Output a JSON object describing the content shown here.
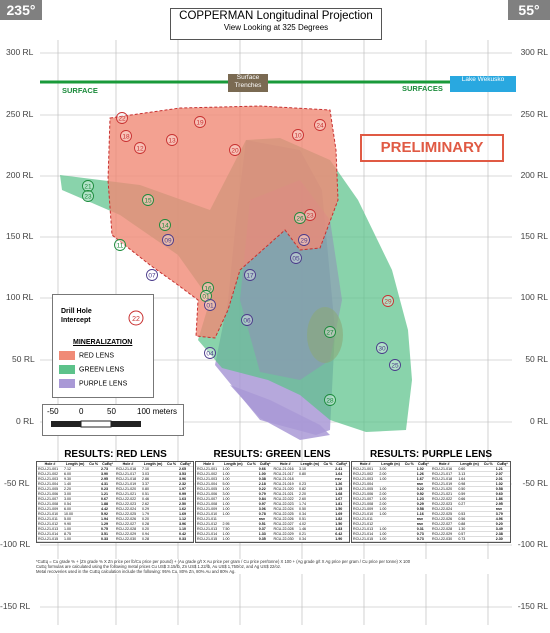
{
  "header": {
    "bearing_left": "235°",
    "bearing_right": "55°",
    "title": "COPPERMAN Longitudinal Projection",
    "subtitle": "View Looking at 325 Degrees"
  },
  "axis_labels": [
    "300 RL",
    "250 RL",
    "200 RL",
    "150 RL",
    "100 RL",
    "50 RL",
    "0 RL",
    "-50 RL",
    "-100 RL",
    "-150 RL"
  ],
  "map_labels": {
    "surface_left": "SURFACE",
    "surface_right": "SURFACES",
    "trenches": "Surface Trenches",
    "lake": "Lake Wekusko",
    "preliminary": "PRELIMINARY"
  },
  "legend": {
    "drill_label": "Drill Hole Intercept",
    "drill_sample": "22",
    "mineral_title": "MINERALIZATION",
    "items": [
      {
        "label": "RED LENS",
        "color": "#f08a76"
      },
      {
        "label": "GREEN LENS",
        "color": "#5cc28a"
      },
      {
        "label": "PURPLE LENS",
        "color": "#a999d6"
      }
    ]
  },
  "scale": {
    "t0": "-50",
    "t1": "0",
    "t2": "50",
    "t3": "100 meters"
  },
  "colors": {
    "red": "#f08a76",
    "green": "#5cc28a",
    "purple": "#a999d6",
    "surface": "#1a9a3a"
  },
  "drill_holes": [
    {
      "n": "22",
      "c": "red"
    },
    {
      "n": "19",
      "c": "red"
    },
    {
      "n": "24",
      "c": "red"
    },
    {
      "n": "18",
      "c": "red"
    },
    {
      "n": "13",
      "c": "red"
    },
    {
      "n": "12",
      "c": "red"
    },
    {
      "n": "20",
      "c": "red"
    },
    {
      "n": "10",
      "c": "red"
    },
    {
      "n": "29",
      "c": "red"
    },
    {
      "n": "23",
      "c": "red"
    },
    {
      "n": "21",
      "c": "green"
    },
    {
      "n": "23",
      "c": "green"
    },
    {
      "n": "15",
      "c": "green"
    },
    {
      "n": "14",
      "c": "green"
    },
    {
      "n": "11",
      "c": "green"
    },
    {
      "n": "27",
      "c": "green"
    },
    {
      "n": "26",
      "c": "green"
    },
    {
      "n": "28",
      "c": "green"
    },
    {
      "n": "16",
      "c": "green"
    },
    {
      "n": "01",
      "c": "green"
    },
    {
      "n": "01",
      "c": "purple"
    },
    {
      "n": "07",
      "c": "purple"
    },
    {
      "n": "09",
      "c": "purple"
    },
    {
      "n": "06",
      "c": "purple"
    },
    {
      "n": "30",
      "c": "purple"
    },
    {
      "n": "17",
      "c": "purple"
    },
    {
      "n": "25",
      "c": "purple"
    },
    {
      "n": "04",
      "c": "purple"
    },
    {
      "n": "05",
      "c": "purple"
    },
    {
      "n": "29",
      "c": "purple"
    }
  ],
  "results": {
    "red_title": "RESULTS: RED LENS",
    "green_title": "RESULTS: GREEN LENS",
    "purple_title": "RESULTS: PURPLE LENS",
    "cols": [
      "Hole #",
      "Length (m)",
      "Cu %",
      "CuEq*",
      "Hole #",
      "Length (m)",
      "Cu %",
      "CuEq*"
    ],
    "red": [
      [
        "RCU-21-001",
        "7.12",
        "2.73",
        "RCU-21-016",
        "7.10",
        "2.65"
      ],
      [
        "RCU-21-002",
        "6.00",
        "3.90",
        "RCU-21-017",
        "3.03",
        "3.53"
      ],
      [
        "RCU-21-003",
        "9.30",
        "2.95",
        "RCU-21-018",
        "2.86",
        "3.96"
      ],
      [
        "RCU-21-004",
        "1.40",
        "4.31",
        "RCU-21-019",
        "3.37",
        "2.32"
      ],
      [
        "RCU-21-005",
        "2.20",
        "0.23",
        "RCU-21-020",
        "0.80",
        "1.97"
      ],
      [
        "RCU-21-006",
        "3.00",
        "1.21",
        "RCU-21-021",
        "0.51",
        "0.99"
      ],
      [
        "RCU-21-007",
        "3.00",
        "0.67",
        "RCU-22-022",
        "0.46",
        "1.63"
      ],
      [
        "RCU-21-008",
        "0.54",
        "1.88",
        "RCU-22-023",
        "2.62",
        "2.50"
      ],
      [
        "RCU-21-009",
        "6.00",
        "4.42",
        "RCU-22-024",
        "0.29",
        "1.62"
      ],
      [
        "RCU-21-010",
        "10.00",
        "5.92",
        "RCU-22-025",
        "1.79",
        "1.69"
      ],
      [
        "RCU-21-011",
        "5.00",
        "1.94",
        "RCU-22-026",
        "0.20",
        "1.12"
      ],
      [
        "RCU-21-012",
        "9.90",
        "1.29",
        "RCU-22-027",
        "0.28",
        "3.96"
      ],
      [
        "RCU-21-013",
        "1.00",
        "0.75",
        "RCU-22-028",
        "0.20",
        "1.10"
      ],
      [
        "RCU-21-014",
        "8.75",
        "3.51",
        "RCU-22-029",
        "0.94",
        "0.42"
      ],
      [
        "RCU-21-015",
        "1.00",
        "0.33",
        "RCU-22-030",
        "0.28",
        "0.33"
      ]
    ],
    "green": [
      [
        "RCU-21-001",
        "1.00",
        "0.66",
        "RCU-21-016",
        "3.10",
        "2.41"
      ],
      [
        "RCU-21-002",
        "1.00",
        "1.00",
        "RCU-21-017",
        "0.80",
        "1.64"
      ],
      [
        "RCU-21-003",
        "1.00",
        "0.38",
        "RCU-21-018",
        "",
        "nsv"
      ],
      [
        "RCU-21-004",
        "5.00",
        "2.18",
        "RCU-21-019",
        "0.23",
        "1.26"
      ],
      [
        "RCU-21-005",
        "1.00",
        "0.22",
        "RCU-21-020",
        "0.82",
        "1.15"
      ],
      [
        "RCU-21-006",
        "3.00",
        "0.79",
        "RCU-21-021",
        "2.20",
        "1.68"
      ],
      [
        "RCU-21-007",
        "1.00",
        "0.84",
        "RCU-22-022",
        "2.60",
        "1.67"
      ],
      [
        "RCU-21-008",
        "1.00",
        "0.97",
        "RCU-22-023",
        "1.74",
        "1.81"
      ],
      [
        "RCU-21-009",
        "1.00",
        "3.06",
        "RCU-22-024",
        "0.50",
        "1.50"
      ],
      [
        "RCU-21-010",
        "1.00",
        "0.78",
        "RCU-22-025",
        "0.34",
        "1.69"
      ],
      [
        "RCU-21-011",
        "",
        "nsv",
        "RCU-22-026",
        "0.51",
        "1.82"
      ],
      [
        "RCU-21-012",
        "2.95",
        "0.51",
        "RCU-22-027",
        "4.02",
        "1.50"
      ],
      [
        "RCU-21-013",
        "7.50",
        "0.37",
        "RCU-22-028",
        "1.46",
        "1.83"
      ],
      [
        "RCU-21-014",
        "1.00",
        "1.33",
        "RCU-22-029",
        "0.21",
        "6.42"
      ],
      [
        "RCU-21-015",
        "1.00",
        "0.35",
        "RCU-22-030",
        "0.34",
        "1.90"
      ]
    ],
    "purple": [
      [
        "RCU-21-001",
        "3.00",
        "1.02",
        "RCU-21-016",
        "0.60",
        "1.21"
      ],
      [
        "RCU-21-002",
        "2.00",
        "1.26",
        "RCU-21-017",
        "3.13",
        "2.07"
      ],
      [
        "RCU-21-003",
        "1.00",
        "1.67",
        "RCU-21-018",
        "1.64",
        "2.01"
      ],
      [
        "RCU-21-004",
        "",
        "nsv",
        "RCU-21-019",
        "0.98",
        "1.02"
      ],
      [
        "RCU-21-005",
        "1.00",
        "0.22",
        "RCU-21-020",
        "0.50",
        "0.58"
      ],
      [
        "RCU-21-006",
        "2.00",
        "0.92",
        "RCU-21-021",
        "0.59",
        "0.60"
      ],
      [
        "RCU-21-007",
        "1.00",
        "1.23",
        "RCU-22-022",
        "0.66",
        "1.86"
      ],
      [
        "RCU-21-008",
        "2.00",
        "0.29",
        "RCU-22-023",
        "0.27",
        "2.95"
      ],
      [
        "RCU-21-009",
        "1.00",
        "0.58",
        "RCU-22-024",
        "",
        "nsv"
      ],
      [
        "RCU-21-010",
        "1.00",
        "1.16",
        "RCU-22-025",
        "0.53",
        "3.79"
      ],
      [
        "RCU-21-011",
        "",
        "nsv",
        "RCU-22-026",
        "0.56",
        "4.96"
      ],
      [
        "RCU-21-012",
        "",
        "nsv",
        "RCU-22-027",
        "0.88",
        "0.20"
      ],
      [
        "RCU-21-013",
        "1.00",
        "0.31",
        "RCU-22-028",
        "1.30",
        "3.49"
      ],
      [
        "RCU-21-014",
        "1.00",
        "0.73",
        "RCU-22-029",
        "0.57",
        "2.38"
      ],
      [
        "RCU-21-015",
        "1.00",
        "0.73",
        "RCU-22-030",
        "0.73",
        "2.30"
      ]
    ],
    "footnote1": "*CuEq = Cu grade % + (Zn grade % X Zn price per lb/Cu price per pound) + (Au grade g/t X Au price per gram / Cu price per/tonne) X 100 + (Ag grade g/t X Ag price per gram / Cu price per tonne) X 100",
    "footnote2": "CuEq formulas are calculated using the following metal prices Cu US$ 3.15/lb, Zn US$ 1.22/lb, Au US$ 1,750/oz, and Ag US$ 22/oz.",
    "footnote3": "Metal recoveries used in the CuEq calculation include the following: 95% Cu, 80% Zn, 80% Au and 80% Ag."
  }
}
